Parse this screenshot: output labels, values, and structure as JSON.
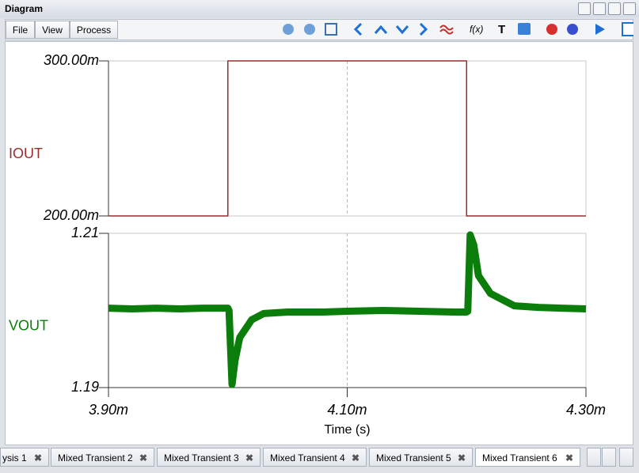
{
  "window": {
    "title": "Diagram"
  },
  "menu": [
    "File",
    "View",
    "Process"
  ],
  "tabs": [
    "ysis 1",
    "Mixed Transient 2",
    "Mixed Transient 3",
    "Mixed Transient 4",
    "Mixed Transient 5",
    "Mixed Transient 6"
  ],
  "chart_data": [
    {
      "type": "line",
      "ylabel": "IOUT",
      "x": [
        3.9,
        4.0,
        4.0,
        4.2,
        4.2,
        4.3
      ],
      "series": [
        {
          "color": "#9b2d2d",
          "values": [
            0.2,
            0.2,
            0.3,
            0.3,
            0.2,
            0.2
          ]
        }
      ],
      "xlim": [
        3.9,
        4.3
      ],
      "ylim": [
        0.2,
        0.3
      ],
      "yticks": [
        {
          "value": 0.2,
          "label": "200.00m"
        },
        {
          "value": 0.3,
          "label": "300.00m"
        }
      ],
      "grid": true
    },
    {
      "type": "line",
      "ylabel": "VOUT",
      "xlabel": "Time (s)",
      "x": [
        3.9,
        3.92,
        3.94,
        3.96,
        3.98,
        4.0,
        4.001,
        4.0035,
        4.006,
        4.01,
        4.02,
        4.03,
        4.05,
        4.08,
        4.1,
        4.13,
        4.16,
        4.19,
        4.2,
        4.201,
        4.203,
        4.206,
        4.21,
        4.22,
        4.24,
        4.26,
        4.28,
        4.3
      ],
      "series": [
        {
          "color": "#0a7d0a",
          "values": [
            1.2003,
            1.2002,
            1.2003,
            1.2002,
            1.2003,
            1.2003,
            1.2,
            1.1904,
            1.1935,
            1.1965,
            1.1988,
            1.1996,
            1.1998,
            1.1998,
            1.1999,
            1.2,
            1.1999,
            1.1998,
            1.1998,
            1.1999,
            1.2098,
            1.2085,
            1.2045,
            1.2022,
            1.2006,
            1.2004,
            1.2003,
            1.2002
          ]
        }
      ],
      "xlim": [
        3.9,
        4.3
      ],
      "ylim": [
        1.19,
        1.21
      ],
      "xticks": [
        {
          "value": 3.9,
          "label": "3.90m"
        },
        {
          "value": 4.1,
          "label": "4.10m"
        },
        {
          "value": 4.3,
          "label": "4.30m"
        }
      ],
      "yticks": [
        1.19,
        1.21
      ],
      "grid": true
    }
  ]
}
